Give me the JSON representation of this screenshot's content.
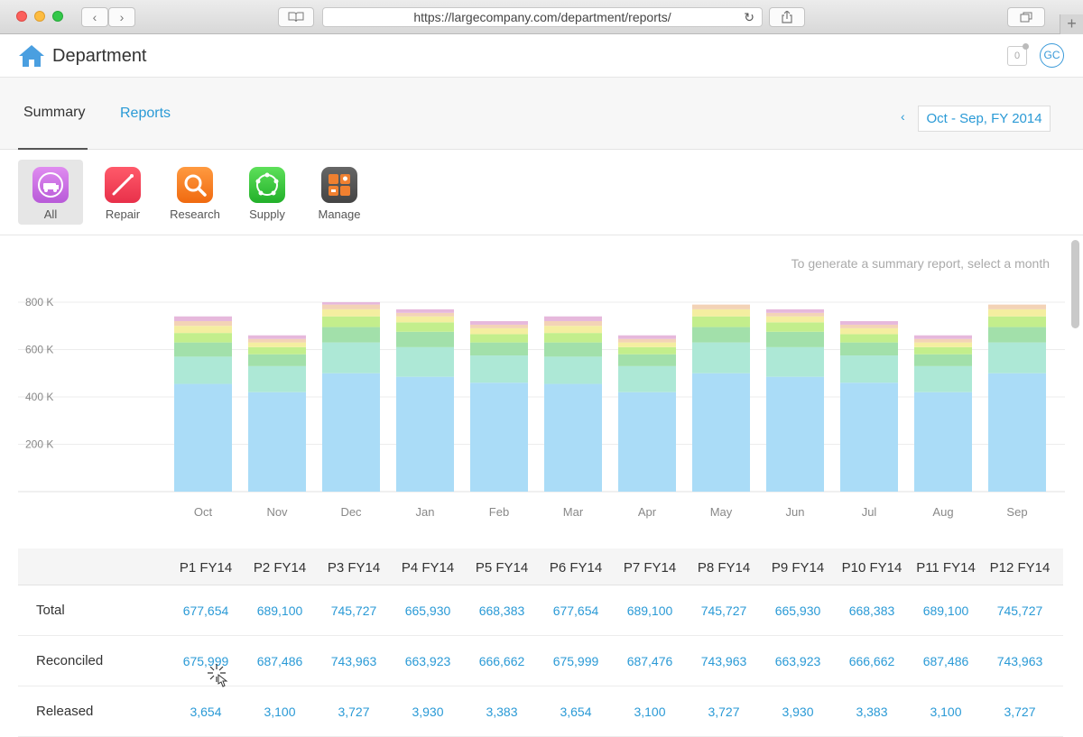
{
  "browser": {
    "url": "https://largecompany.com/department/reports/"
  },
  "app": {
    "title": "Department",
    "notification_count": "0",
    "user_initials": "GC"
  },
  "tabs": [
    {
      "label": "Summary",
      "active": true
    },
    {
      "label": "Reports",
      "active": false
    }
  ],
  "period": {
    "prev_label": "‹",
    "label": "Oct - Sep, FY 2014"
  },
  "categories": [
    {
      "label": "All",
      "icon": "cart-icon",
      "color": "#c070e0",
      "active": true
    },
    {
      "label": "Repair",
      "icon": "screwdriver-icon",
      "color": "#f0404f",
      "active": false
    },
    {
      "label": "Research",
      "icon": "magnifier-icon",
      "color": "#f57a1e",
      "active": false
    },
    {
      "label": "Supply",
      "icon": "network-icon",
      "color": "#35c43a",
      "active": false
    },
    {
      "label": "Manage",
      "icon": "grid-icon",
      "color": "#555555",
      "active": false
    }
  ],
  "chart": {
    "hint": "To generate a summary report, select a month"
  },
  "chart_data": {
    "type": "bar",
    "stacked": true,
    "categories": [
      "Oct",
      "Nov",
      "Dec",
      "Jan",
      "Feb",
      "Mar",
      "Apr",
      "May",
      "Jun",
      "Jul",
      "Aug",
      "Sep"
    ],
    "ylim": [
      0,
      800000
    ],
    "yticks": [
      {
        "value": 200000,
        "label": "200 K"
      },
      {
        "value": 400000,
        "label": "400 K"
      },
      {
        "value": 600000,
        "label": "600 K"
      },
      {
        "value": 800000,
        "label": "800 K"
      }
    ],
    "grid": true,
    "series": [
      {
        "color": "#aadcf7",
        "values": [
          455000,
          420000,
          500000,
          485000,
          460000,
          455000,
          420000,
          500000,
          485000,
          460000,
          420000,
          500000
        ]
      },
      {
        "color": "#ade8d6",
        "values": [
          115000,
          110000,
          130000,
          125000,
          115000,
          115000,
          110000,
          130000,
          125000,
          115000,
          110000,
          130000
        ]
      },
      {
        "color": "#a2e0aa",
        "values": [
          60000,
          50000,
          65000,
          65000,
          55000,
          60000,
          50000,
          65000,
          65000,
          55000,
          50000,
          65000
        ]
      },
      {
        "color": "#c3ee8c",
        "values": [
          40000,
          30000,
          45000,
          40000,
          35000,
          40000,
          30000,
          45000,
          40000,
          35000,
          30000,
          45000
        ]
      },
      {
        "color": "#f4eea0",
        "values": [
          30000,
          20000,
          30000,
          25000,
          25000,
          30000,
          20000,
          30000,
          25000,
          25000,
          20000,
          30000
        ]
      },
      {
        "color": "#f3d3b6",
        "values": [
          20000,
          15000,
          20000,
          15000,
          15000,
          20000,
          15000,
          20000,
          15000,
          15000,
          15000,
          20000
        ]
      },
      {
        "color": "#e6b8dc",
        "values": [
          20000,
          15000,
          10000,
          15000,
          15000,
          20000,
          15000,
          0,
          15000,
          15000,
          15000,
          0
        ]
      }
    ]
  },
  "table": {
    "columns": [
      "P1 FY14",
      "P2 FY14",
      "P3 FY14",
      "P4 FY14",
      "P5 FY14",
      "P6 FY14",
      "P7 FY14",
      "P8 FY14",
      "P9 FY14",
      "P10 FY14",
      "P11 FY14",
      "P12 FY14"
    ],
    "rows": [
      {
        "label": "Total",
        "values": [
          "677,654",
          "689,100",
          "745,727",
          "665,930",
          "668,383",
          "677,654",
          "689,100",
          "745,727",
          "665,930",
          "668,383",
          "689,100",
          "745,727"
        ]
      },
      {
        "label": "Reconciled",
        "values": [
          "675,999",
          "687,486",
          "743,963",
          "663,923",
          "666,662",
          "675,999",
          "687,476",
          "743,963",
          "663,923",
          "666,662",
          "687,486",
          "743,963"
        ]
      },
      {
        "label": "Released",
        "values": [
          "3,654",
          "3,100",
          "3,727",
          "3,930",
          "3,383",
          "3,654",
          "3,100",
          "3,727",
          "3,930",
          "3,383",
          "3,100",
          "3,727"
        ]
      }
    ]
  }
}
